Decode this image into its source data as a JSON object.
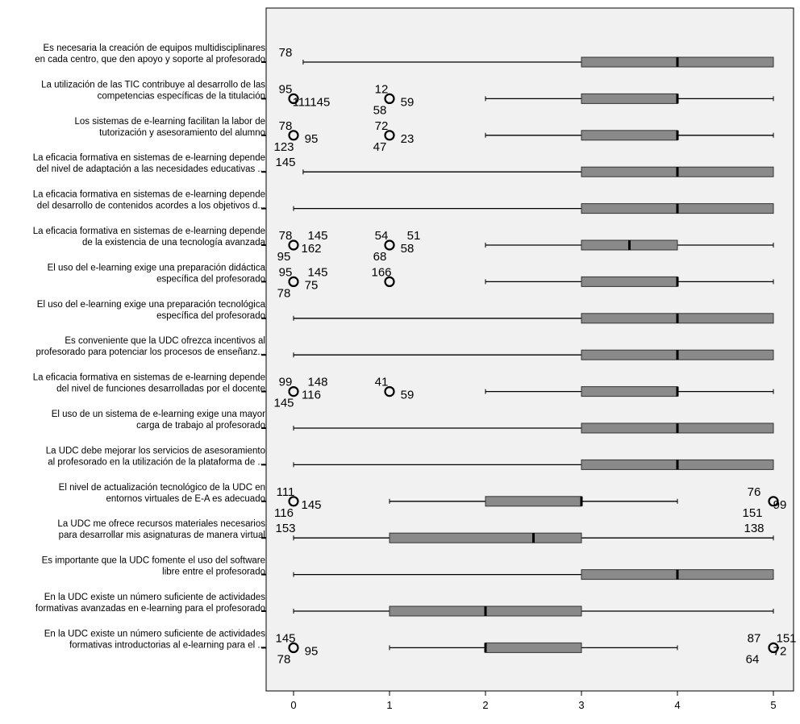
{
  "chart_data": {
    "type": "boxplot",
    "orientation": "horizontal",
    "xlim": [
      0,
      5
    ],
    "xticks": [
      0,
      1,
      2,
      3,
      4,
      5
    ],
    "grid": false,
    "colors": {
      "plot_background": "#f1f1f1",
      "box_fill": "#8a8a8a",
      "box_stroke": "#333333",
      "median": "#000000",
      "whisker": "#000000"
    },
    "items": [
      {
        "label_lines": [
          "Es necesaria la creación de equipos multidisciplinares",
          "en cada centro, que den apoyo y soporte al profesorado"
        ],
        "whisker_low": 0.1,
        "q1": 3,
        "median": 4,
        "q3": 5,
        "whisker_high": 5,
        "outliers": [],
        "outlier_labels": [
          {
            "text": "78",
            "near": 0
          }
        ]
      },
      {
        "label_lines": [
          "La utilización de las TIC contribuye al desarrollo de las",
          "competencias específicas de la titulación"
        ],
        "whisker_low": 2,
        "q1": 3,
        "median": 4,
        "q3": 4,
        "whisker_high": 5,
        "outliers": [
          0,
          1
        ],
        "outlier_labels": [
          {
            "text": "95",
            "near": 0
          },
          {
            "text": "111145",
            "near": 0
          },
          {
            "text": "12",
            "near": 1
          },
          {
            "text": "59",
            "near": 1
          },
          {
            "text": "58",
            "near": 1
          }
        ]
      },
      {
        "label_lines": [
          "Los sistemas de e-learning facilitan la labor de",
          "tutorización y asesoramiento del alumno"
        ],
        "whisker_low": 2,
        "q1": 3,
        "median": 4,
        "q3": 4,
        "whisker_high": 5,
        "outliers": [
          0,
          1
        ],
        "outlier_labels": [
          {
            "text": "78",
            "near": 0
          },
          {
            "text": "95",
            "near": 0
          },
          {
            "text": "123",
            "near": 0
          },
          {
            "text": "72",
            "near": 1
          },
          {
            "text": "23",
            "near": 1
          },
          {
            "text": "47",
            "near": 1
          }
        ]
      },
      {
        "label_lines": [
          "La eficacia formativa en sistemas de e-learning depende",
          "del nivel de adaptación a las necesidades educativas ..."
        ],
        "whisker_low": 0.1,
        "q1": 3,
        "median": 4,
        "q3": 5,
        "whisker_high": 5,
        "outliers": [],
        "outlier_labels": [
          {
            "text": "145",
            "near": 0
          }
        ]
      },
      {
        "label_lines": [
          "La eficacia formativa en sistemas de e-learning depende",
          "del desarrollo de contenidos acordes a los objetivos d..."
        ],
        "whisker_low": 0,
        "q1": 3,
        "median": 4,
        "q3": 5,
        "whisker_high": 5,
        "outliers": [],
        "outlier_labels": []
      },
      {
        "label_lines": [
          "La eficacia formativa en sistemas de e-learning depende",
          "de la existencia de una tecnología avanzada"
        ],
        "whisker_low": 2,
        "q1": 3,
        "median": 3.5,
        "q3": 4,
        "whisker_high": 5,
        "outliers": [
          0,
          1
        ],
        "outlier_labels": [
          {
            "text": "78",
            "near": 0
          },
          {
            "text": "162",
            "near": 0
          },
          {
            "text": "95",
            "near": 0
          },
          {
            "text": "145",
            "near": 0
          },
          {
            "text": "54",
            "near": 1
          },
          {
            "text": "58",
            "near": 1
          },
          {
            "text": "68",
            "near": 1
          },
          {
            "text": "51",
            "near": 1
          }
        ]
      },
      {
        "label_lines": [
          "El uso del e-learning exige una preparación didáctica",
          "específica del profesorado"
        ],
        "whisker_low": 2,
        "q1": 3,
        "median": 4,
        "q3": 4,
        "whisker_high": 5,
        "outliers": [
          0,
          1
        ],
        "outlier_labels": [
          {
            "text": "95",
            "near": 0
          },
          {
            "text": "75",
            "near": 0
          },
          {
            "text": "78",
            "near": 0
          },
          {
            "text": "145",
            "near": 0
          },
          {
            "text": "166",
            "near": 1
          }
        ]
      },
      {
        "label_lines": [
          "El uso del e-learning exige una preparación tecnológica",
          "específica del profesorado"
        ],
        "whisker_low": 0,
        "q1": 3,
        "median": 4,
        "q3": 5,
        "whisker_high": 5,
        "outliers": [],
        "outlier_labels": []
      },
      {
        "label_lines": [
          "Es conveniente que la UDC ofrezca incentivos al",
          "profesorado para potenciar los procesos de enseñanz..."
        ],
        "whisker_low": 0,
        "q1": 3,
        "median": 4,
        "q3": 5,
        "whisker_high": 5,
        "outliers": [],
        "outlier_labels": []
      },
      {
        "label_lines": [
          "La eficacia formativa en sistemas de e-learning depende",
          "del nivel de funciones desarrolladas por el docente"
        ],
        "whisker_low": 2,
        "q1": 3,
        "median": 4,
        "q3": 4,
        "whisker_high": 5,
        "outliers": [
          0,
          1
        ],
        "outlier_labels": [
          {
            "text": "99",
            "near": 0
          },
          {
            "text": "116",
            "near": 0
          },
          {
            "text": "145",
            "near": 0
          },
          {
            "text": "148",
            "near": 0
          },
          {
            "text": "41",
            "near": 1
          },
          {
            "text": "59",
            "near": 1
          }
        ]
      },
      {
        "label_lines": [
          "El uso de un sistema de e-learning exige una mayor",
          "carga de trabajo al profesorado"
        ],
        "whisker_low": 0,
        "q1": 3,
        "median": 4,
        "q3": 5,
        "whisker_high": 5,
        "outliers": [],
        "outlier_labels": []
      },
      {
        "label_lines": [
          "La UDC debe mejorar los servicios de asesoramiento",
          "al profesorado en la utilización de la plataforma de ..."
        ],
        "whisker_low": 0,
        "q1": 3,
        "median": 4,
        "q3": 5,
        "whisker_high": 5,
        "outliers": [],
        "outlier_labels": []
      },
      {
        "label_lines": [
          "El nivel de actualización tecnológico de la UDC en",
          "entornos virtuales de E-A es adecuado"
        ],
        "whisker_low": 1,
        "q1": 2,
        "median": 3,
        "q3": 3,
        "whisker_high": 4,
        "outliers": [
          0,
          5
        ],
        "outlier_labels": [
          {
            "text": "111",
            "near": 0
          },
          {
            "text": "145",
            "near": 0
          },
          {
            "text": "116",
            "near": 0
          },
          {
            "text": "76",
            "near": 5
          },
          {
            "text": "99",
            "near": 5
          },
          {
            "text": "151",
            "near": 5
          }
        ]
      },
      {
        "label_lines": [
          "La UDC me ofrece recursos materiales necesarios",
          "para desarrollar mis asignaturas de manera virtual"
        ],
        "whisker_low": 0,
        "q1": 1,
        "median": 2.5,
        "q3": 3,
        "whisker_high": 5,
        "outliers": [],
        "outlier_labels": [
          {
            "text": "153",
            "near": 0
          },
          {
            "text": "138",
            "near": 5
          }
        ]
      },
      {
        "label_lines": [
          "Es importante que la UDC fomente el uso del software",
          "libre entre el profesorado"
        ],
        "whisker_low": 0,
        "q1": 3,
        "median": 4,
        "q3": 5,
        "whisker_high": 5,
        "outliers": [],
        "outlier_labels": []
      },
      {
        "label_lines": [
          "En la UDC existe un número suficiente de actividades",
          "formativas avanzadas en e-learning para el profesorado"
        ],
        "whisker_low": 0,
        "q1": 1,
        "median": 2,
        "q3": 3,
        "whisker_high": 5,
        "outliers": [],
        "outlier_labels": []
      },
      {
        "label_lines": [
          "En la UDC existe un número suficiente de actividades",
          "formativas introductorias al e-learning para el ..."
        ],
        "whisker_low": 1,
        "q1": 2,
        "median": 2,
        "q3": 3,
        "whisker_high": 4,
        "outliers": [
          0,
          5
        ],
        "outlier_labels": [
          {
            "text": "145",
            "near": 0
          },
          {
            "text": "95",
            "near": 0
          },
          {
            "text": "78",
            "near": 0
          },
          {
            "text": "87",
            "near": 5
          },
          {
            "text": "72",
            "near": 5
          },
          {
            "text": "64",
            "near": 5
          },
          {
            "text": "151",
            "near": 5
          }
        ]
      }
    ]
  }
}
